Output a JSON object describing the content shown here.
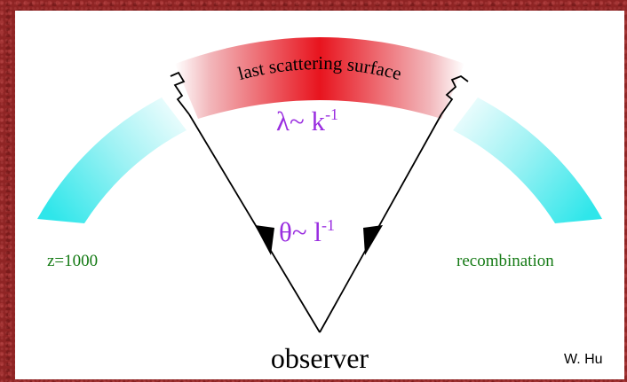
{
  "diagram": {
    "surface_label": "last scattering surface",
    "wavelength_label": "λ~ k",
    "wavelength_exp": "-1",
    "angle_label": "θ~ l",
    "angle_exp": "-1",
    "redshift_label": "z=1000",
    "recombination_label": "recombination",
    "observer_label": "observer",
    "credit": "W. Hu"
  },
  "colors": {
    "background": "#8f2424",
    "panel": "#ffffff",
    "surface_red": "#e8141e",
    "arc_cyan": "#2fe6ea",
    "math_purple": "#9a2ee0",
    "label_green": "#157a15",
    "line": "#000000"
  }
}
